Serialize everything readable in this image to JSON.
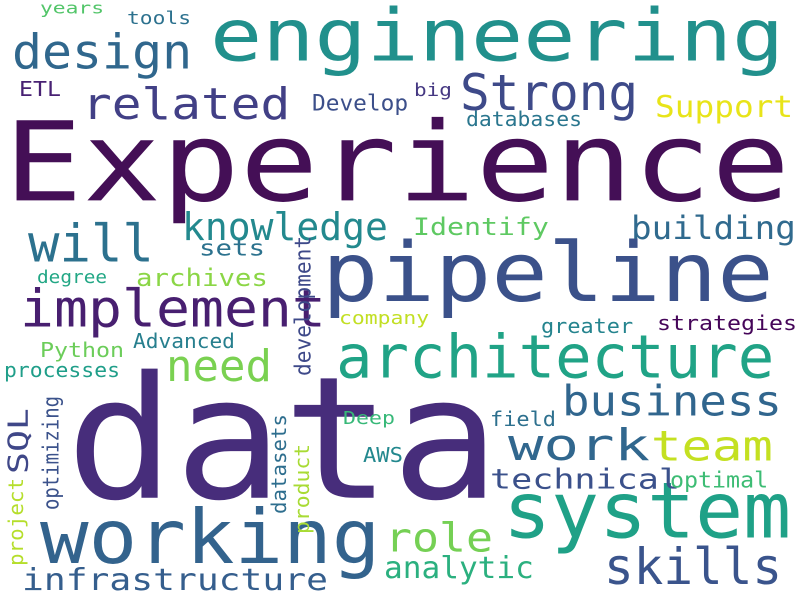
{
  "words": [
    {
      "id": "data",
      "text": "data",
      "color": "#472d7b"
    },
    {
      "id": "experience",
      "text": "Experience",
      "color": "#440f56"
    },
    {
      "id": "engineering",
      "text": "engineering",
      "color": "#21908c"
    },
    {
      "id": "pipeline",
      "text": "pipeline",
      "color": "#3b518a"
    },
    {
      "id": "system",
      "text": "system",
      "color": "#1fa187"
    },
    {
      "id": "working",
      "text": "working",
      "color": "#33638d"
    },
    {
      "id": "architecture",
      "text": "architecture",
      "color": "#20a386"
    },
    {
      "id": "implement",
      "text": "implement",
      "color": "#481f70"
    },
    {
      "id": "design",
      "text": "design",
      "color": "#30678d"
    },
    {
      "id": "strong",
      "text": "Strong",
      "color": "#3e4a89"
    },
    {
      "id": "related",
      "text": "related",
      "color": "#424086"
    },
    {
      "id": "will",
      "text": "will",
      "color": "#2c718e"
    },
    {
      "id": "knowledge",
      "text": "knowledge",
      "color": "#23898e"
    },
    {
      "id": "skills",
      "text": "skills",
      "color": "#3a548c"
    },
    {
      "id": "team",
      "text": "team",
      "color": "#c4e021"
    },
    {
      "id": "business",
      "text": "business",
      "color": "#31668e"
    },
    {
      "id": "work",
      "text": "work",
      "color": "#31678e"
    },
    {
      "id": "need",
      "text": "need",
      "color": "#7ad151"
    },
    {
      "id": "infrastructure",
      "text": "infrastructure",
      "color": "#355e8d"
    },
    {
      "id": "role",
      "text": "role",
      "color": "#75d054"
    },
    {
      "id": "building",
      "text": "building",
      "color": "#306a8e"
    },
    {
      "id": "technical",
      "text": "technical",
      "color": "#3b518b"
    },
    {
      "id": "analytic",
      "text": "analytic",
      "color": "#2bb07f"
    },
    {
      "id": "support",
      "text": "Support",
      "color": "#e8e419"
    },
    {
      "id": "archives",
      "text": "archives",
      "color": "#8bd646"
    },
    {
      "id": "identify",
      "text": "Identify",
      "color": "#5ec962"
    },
    {
      "id": "sql",
      "text": "SQL",
      "color": "#3f4788"
    },
    {
      "id": "develop",
      "text": "Develop",
      "color": "#3c4f8a"
    },
    {
      "id": "sets",
      "text": "sets",
      "color": "#2c728e"
    },
    {
      "id": "databases",
      "text": "databases",
      "color": "#2a768e"
    },
    {
      "id": "development",
      "text": "development",
      "color": "#3e4989"
    },
    {
      "id": "strategies",
      "text": "strategies",
      "color": "#450559"
    },
    {
      "id": "years",
      "text": "years",
      "color": "#52c569"
    },
    {
      "id": "tools",
      "text": "tools",
      "color": "#2c718e"
    },
    {
      "id": "etl",
      "text": "ETL",
      "color": "#482173"
    },
    {
      "id": "big",
      "text": "big",
      "color": "#453882"
    },
    {
      "id": "degree",
      "text": "degree",
      "color": "#22a785"
    },
    {
      "id": "company",
      "text": "company",
      "color": "#c2df23"
    },
    {
      "id": "python",
      "text": "Python",
      "color": "#6ccd5a"
    },
    {
      "id": "advanced",
      "text": "Advanced",
      "color": "#277f8e"
    },
    {
      "id": "processes",
      "text": "processes",
      "color": "#1f9e89"
    },
    {
      "id": "greater",
      "text": "greater",
      "color": "#25848e"
    },
    {
      "id": "optimizing",
      "text": "optimizing",
      "color": "#3b528b"
    },
    {
      "id": "deep",
      "text": "Deep",
      "color": "#37b878"
    },
    {
      "id": "field",
      "text": "field",
      "color": "#2d708e"
    },
    {
      "id": "aws",
      "text": "AWS",
      "color": "#23888e"
    },
    {
      "id": "datasets",
      "text": "datasets",
      "color": "#2e6e8e"
    },
    {
      "id": "product",
      "text": "product",
      "color": "#a8db34"
    },
    {
      "id": "optimal",
      "text": "optimal",
      "color": "#3dbc74"
    },
    {
      "id": "project",
      "text": "project",
      "color": "#b5de2b"
    }
  ]
}
